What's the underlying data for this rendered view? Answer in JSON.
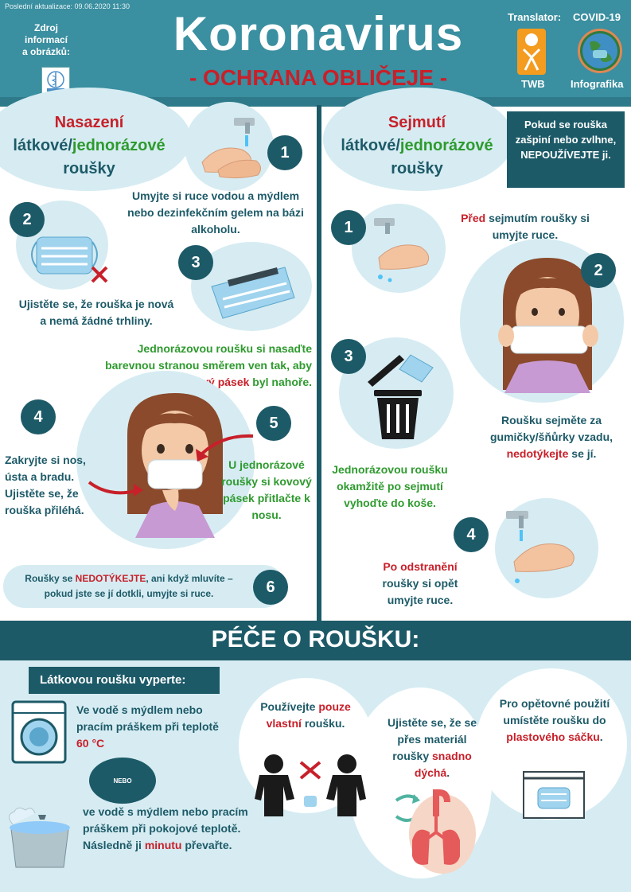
{
  "header": {
    "updated": "Poslední aktualizace: 09.06.2020 11:30",
    "source_label": "Zdroj informací a obrázků:",
    "title": "Koronavirus",
    "subtitle": "- OCHRANA OBLIČEJE -",
    "translator_label": "Translator:",
    "covid_label": "COVID-19",
    "twb_label": "TWB",
    "infografika_label": "Infografika",
    "who_logo_text": "World Health Organization"
  },
  "putting_on": {
    "heading_part1": "Nasazení",
    "heading_part2": "látkové/",
    "heading_part3": "jednorázové",
    "heading_part4": "roušky",
    "step1": {
      "num": "1",
      "text": "Umyjte si ruce vodou a mýdlem nebo dezinfekčním gelem na bázi alkoholu."
    },
    "step2": {
      "num": "2",
      "text": "Ujistěte se, že rouška je nová a nemá žádné trhliny."
    },
    "step3": {
      "num": "3",
      "text_part1": "Jednorázovou roušku si nasaďte barevnou stranou směrem ven tak, aby ",
      "text_part2": "kovový pásek",
      "text_part3": " byl nahoře."
    },
    "step4": {
      "num": "4",
      "text": "Zakryjte si nos, ústa a bradu. Ujistěte se, že rouška přiléhá."
    },
    "step5": {
      "num": "5",
      "text": "U jednorázové roušky si kovový pásek přitlačte k nosu."
    },
    "step6": {
      "num": "6",
      "text_part1": "Roušky se ",
      "text_part2": "NEDOTÝKEJTE",
      "text_part3": ", ani když mluvíte – pokud jste se jí dotkli, umyjte si ruce."
    }
  },
  "taking_off": {
    "heading_part1": "Sejmutí",
    "heading_part2": "látkové/",
    "heading_part3": "jednorázové",
    "heading_part4": "roušky",
    "warning": "Pokud se rouška zašpiní nebo zvlhne, NEPOUŽÍVEJTE ji.",
    "step1": {
      "num": "1",
      "text_part1": "Před",
      "text_part2": " sejmutím roušky si umyjte ruce."
    },
    "step2": {
      "num": "2",
      "text_part1": "Roušku sejměte za gumičky/šňůrky vzadu, ",
      "text_part2": "nedotýkejte",
      "text_part3": " se jí."
    },
    "step3": {
      "num": "3",
      "text": "Jednorázovou roušku okamžitě po sejmutí vyhoďte do koše."
    },
    "step4": {
      "num": "4",
      "text_part1": "Po odstranění",
      "text_part2": " roušky si opět umyjte ruce."
    }
  },
  "care": {
    "title": "PÉČE O ROUŠKU:",
    "wash_label": "Látkovou roušku vyperte:",
    "wash1_part1": "Ve vodě s mýdlem nebo pracím práškem při teplotě ",
    "wash1_part2": "60 °C",
    "or_label": "NEBO",
    "wash2_part1": "ve vodě s mýdlem nebo pracím práškem při pokojové teplotě. Následně ji ",
    "wash2_part2": "minutu",
    "wash2_part3": " převařte.",
    "own_part1": "Používejte ",
    "own_part2": "pouze vlastní",
    "own_part3": " roušku.",
    "breath_part1": "Ujistěte se, že se přes materiál roušky ",
    "breath_part2": "snadno dýchá",
    "breath_part3": ".",
    "bag_part1": "Pro opětovné použití umístěte roušku do ",
    "bag_part2": "plastového sáčku",
    "bag_part3": "."
  },
  "colors": {
    "header_bg": "#3a8fa0",
    "dark_teal": "#1d5a68",
    "light_blue": "#d6ecf2",
    "red": "#c8202a",
    "green": "#2e9a2e"
  }
}
